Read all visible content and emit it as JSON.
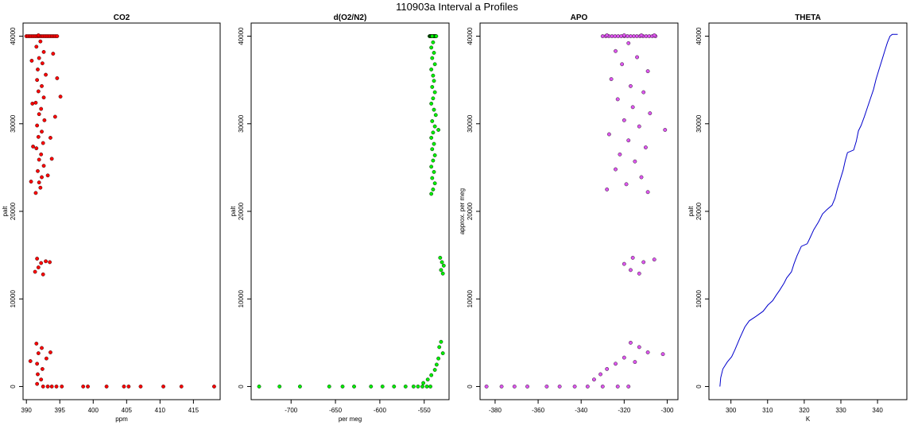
{
  "figure": {
    "title": "110903a   Interval a Profiles"
  },
  "chart_data": [
    {
      "type": "scatter",
      "title": "CO2",
      "xlabel": "ppm",
      "ylabel": "palt",
      "xlim": [
        389.5,
        419
      ],
      "ylim": [
        -1500,
        41500
      ],
      "xticks": [
        390,
        395,
        400,
        405,
        410,
        415
      ],
      "yticks": [
        0,
        10000,
        20000,
        30000,
        40000
      ],
      "grid": false,
      "marker_color": "#ff0000",
      "series": [
        {
          "points": [
            [
              391.8,
              40100
            ],
            [
              392.1,
              39400
            ],
            [
              391.5,
              38800
            ],
            [
              392.6,
              38200
            ],
            [
              391.9,
              37500
            ],
            [
              392.4,
              36900
            ],
            [
              391.7,
              36200
            ],
            [
              392.9,
              35600
            ],
            [
              391.6,
              35000
            ],
            [
              392.3,
              34300
            ],
            [
              391.8,
              33700
            ],
            [
              392.6,
              33000
            ],
            [
              391.4,
              32400
            ],
            [
              392.2,
              31700
            ],
            [
              391.9,
              31100
            ],
            [
              392.7,
              30400
            ],
            [
              391.6,
              29800
            ],
            [
              392.3,
              29100
            ],
            [
              391.8,
              28500
            ],
            [
              392.5,
              27800
            ],
            [
              391.5,
              27200
            ],
            [
              392.2,
              26500
            ],
            [
              391.9,
              25900
            ],
            [
              392.6,
              25200
            ],
            [
              391.7,
              24600
            ],
            [
              392.3,
              23900
            ],
            [
              391.9,
              23300
            ],
            [
              392.1,
              22700
            ],
            [
              391.4,
              22100
            ],
            [
              394.0,
              38000
            ],
            [
              394.6,
              35200
            ],
            [
              395.1,
              33100
            ],
            [
              394.3,
              30800
            ],
            [
              393.6,
              28400
            ],
            [
              393.8,
              26000
            ],
            [
              393.2,
              24100
            ],
            [
              390.8,
              37200
            ],
            [
              390.9,
              32300
            ],
            [
              391.0,
              27400
            ],
            [
              390.7,
              23400
            ],
            [
              391.6,
              14600
            ],
            [
              392.2,
              14100
            ],
            [
              391.8,
              13600
            ],
            [
              392.9,
              14300
            ],
            [
              391.3,
              13100
            ],
            [
              392.5,
              12800
            ],
            [
              393.5,
              14200
            ],
            [
              391.5,
              4900
            ],
            [
              392.3,
              4400
            ],
            [
              391.8,
              3800
            ],
            [
              393.0,
              3200
            ],
            [
              391.6,
              2600
            ],
            [
              392.4,
              2000
            ],
            [
              391.7,
              1400
            ],
            [
              392.2,
              800
            ],
            [
              391.6,
              300
            ],
            [
              393.6,
              3900
            ],
            [
              390.6,
              2900
            ],
            [
              392.5,
              0
            ],
            [
              393.2,
              0
            ],
            [
              393.8,
              0
            ],
            [
              394.5,
              0
            ],
            [
              395.3,
              0
            ],
            [
              398.5,
              0
            ],
            [
              399.2,
              0
            ],
            [
              402.0,
              0
            ],
            [
              404.6,
              0
            ],
            [
              405.3,
              0
            ],
            [
              407.1,
              0
            ],
            [
              410.5,
              0
            ],
            [
              413.2,
              0
            ],
            [
              418.1,
              0
            ]
          ]
        }
      ]
    },
    {
      "type": "scatter",
      "title": "d(O2/N2)",
      "xlabel": "per meg",
      "ylabel": "palt",
      "xlim": [
        -745,
        -522
      ],
      "ylim": [
        -1500,
        41500
      ],
      "xticks": [
        -700,
        -650,
        -600,
        -550
      ],
      "yticks": [
        0,
        10000,
        20000,
        30000,
        40000
      ],
      "grid": false,
      "marker_color": "#00ee00",
      "series": [
        {
          "points": [
            [
              -541,
              40000
            ],
            [
              -540,
              39300
            ],
            [
              -542,
              38700
            ],
            [
              -539,
              38100
            ],
            [
              -541,
              37500
            ],
            [
              -538,
              36800
            ],
            [
              -542,
              36200
            ],
            [
              -540,
              35500
            ],
            [
              -539,
              34900
            ],
            [
              -541,
              34200
            ],
            [
              -538,
              33600
            ],
            [
              -540,
              32900
            ],
            [
              -542,
              32300
            ],
            [
              -539,
              31600
            ],
            [
              -537,
              31000
            ],
            [
              -541,
              30300
            ],
            [
              -538,
              29700
            ],
            [
              -534,
              29300
            ],
            [
              -540,
              29000
            ],
            [
              -542,
              28400
            ],
            [
              -539,
              27700
            ],
            [
              -541,
              27100
            ],
            [
              -538,
              26400
            ],
            [
              -540,
              25800
            ],
            [
              -542,
              25100
            ],
            [
              -539,
              24500
            ],
            [
              -541,
              23800
            ],
            [
              -538,
              23200
            ],
            [
              -540,
              22500
            ],
            [
              -542,
              22000
            ],
            [
              -532,
              14700
            ],
            [
              -530,
              14200
            ],
            [
              -528,
              13800
            ],
            [
              -531,
              13300
            ],
            [
              -529,
              12900
            ],
            [
              -531,
              5100
            ],
            [
              -533,
              4500
            ],
            [
              -529,
              3800
            ],
            [
              -534,
              3200
            ],
            [
              -536,
              2500
            ],
            [
              -538,
              1900
            ],
            [
              -542,
              1300
            ],
            [
              -546,
              800
            ],
            [
              -551,
              400
            ],
            [
              -543,
              0
            ],
            [
              -547,
              0
            ],
            [
              -552,
              0
            ],
            [
              -557,
              0
            ],
            [
              -562,
              0
            ],
            [
              -571,
              0
            ],
            [
              -584,
              0
            ],
            [
              -597,
              0
            ],
            [
              -610,
              0
            ],
            [
              -629,
              0
            ],
            [
              -642,
              0
            ],
            [
              -657,
              0
            ],
            [
              -690,
              0
            ],
            [
              -713,
              0
            ],
            [
              -736,
              0
            ]
          ]
        }
      ]
    },
    {
      "type": "scatter",
      "title": "APO",
      "xlabel": "",
      "ylabel": "approx. per meg",
      "xlim": [
        -387,
        -295
      ],
      "ylim": [
        -1500,
        41500
      ],
      "xticks": [
        -380,
        -360,
        -340,
        -320,
        -300
      ],
      "yticks": [
        0,
        10000,
        20000,
        30000,
        40000
      ],
      "grid": false,
      "marker_color": "#dd55ee",
      "series": [
        {
          "points": [
            [
              -328,
              40100
            ],
            [
              -320,
              40100
            ],
            [
              -312,
              40100
            ],
            [
              -306,
              40100
            ],
            [
              -318,
              39200
            ],
            [
              -324,
              38300
            ],
            [
              -314,
              37600
            ],
            [
              -321,
              36800
            ],
            [
              -309,
              36000
            ],
            [
              -326,
              35100
            ],
            [
              -317,
              34300
            ],
            [
              -311,
              33600
            ],
            [
              -323,
              32800
            ],
            [
              -316,
              31900
            ],
            [
              -308,
              31200
            ],
            [
              -320,
              30400
            ],
            [
              -313,
              29700
            ],
            [
              -301,
              29300
            ],
            [
              -327,
              28800
            ],
            [
              -318,
              28100
            ],
            [
              -310,
              27300
            ],
            [
              -322,
              26500
            ],
            [
              -315,
              25700
            ],
            [
              -324,
              24800
            ],
            [
              -312,
              23900
            ],
            [
              -319,
              23100
            ],
            [
              -328,
              22500
            ],
            [
              -309,
              22200
            ],
            [
              -316,
              14700
            ],
            [
              -311,
              14200
            ],
            [
              -306,
              14500
            ],
            [
              -317,
              13300
            ],
            [
              -313,
              12900
            ],
            [
              -320,
              14000
            ],
            [
              -317,
              5000
            ],
            [
              -313,
              4500
            ],
            [
              -309,
              3900
            ],
            [
              -320,
              3300
            ],
            [
              -324,
              2600
            ],
            [
              -328,
              2000
            ],
            [
              -331,
              1400
            ],
            [
              -334,
              800
            ],
            [
              -315,
              2800
            ],
            [
              -302,
              3700
            ],
            [
              -318,
              0
            ],
            [
              -323,
              0
            ],
            [
              -330,
              0
            ],
            [
              -337,
              0
            ],
            [
              -343,
              0
            ],
            [
              -350,
              0
            ],
            [
              -356,
              0
            ],
            [
              -365,
              0
            ],
            [
              -371,
              0
            ],
            [
              -377,
              0
            ],
            [
              -384,
              0
            ]
          ]
        }
      ]
    },
    {
      "type": "line",
      "title": "THETA",
      "xlabel": "K",
      "ylabel": "palt",
      "xlim": [
        294,
        348
      ],
      "ylim": [
        -1500,
        41500
      ],
      "xticks": [
        300,
        310,
        320,
        330,
        340
      ],
      "yticks": [
        0,
        10000,
        20000,
        30000,
        40000
      ],
      "grid": false,
      "line_color": "#0000cc",
      "series": [
        {
          "points": [
            [
              297.0,
              0
            ],
            [
              297.2,
              1000
            ],
            [
              297.8,
              2000
            ],
            [
              299.0,
              2800
            ],
            [
              300.2,
              3400
            ],
            [
              301.1,
              4200
            ],
            [
              302.5,
              5600
            ],
            [
              303.8,
              6800
            ],
            [
              305.0,
              7500
            ],
            [
              306.8,
              8000
            ],
            [
              308.8,
              8600
            ],
            [
              310.1,
              9300
            ],
            [
              311.4,
              9800
            ],
            [
              312.3,
              10400
            ],
            [
              313.3,
              11000
            ],
            [
              314.5,
              11800
            ],
            [
              315.2,
              12400
            ],
            [
              316.5,
              13100
            ],
            [
              317.2,
              14000
            ],
            [
              318.0,
              14900
            ],
            [
              319.2,
              16000
            ],
            [
              320.8,
              16300
            ],
            [
              321.6,
              17000
            ],
            [
              322.6,
              17900
            ],
            [
              323.9,
              18800
            ],
            [
              325.0,
              19700
            ],
            [
              326.2,
              20200
            ],
            [
              327.6,
              20700
            ],
            [
              328.4,
              21500
            ],
            [
              329.0,
              22500
            ],
            [
              329.8,
              23600
            ],
            [
              330.6,
              24700
            ],
            [
              331.2,
              25800
            ],
            [
              331.8,
              26700
            ],
            [
              333.5,
              27000
            ],
            [
              334.2,
              28000
            ],
            [
              334.8,
              29200
            ],
            [
              335.5,
              29800
            ],
            [
              336.4,
              30800
            ],
            [
              337.2,
              31800
            ],
            [
              338.0,
              32800
            ],
            [
              338.9,
              33900
            ],
            [
              339.6,
              35100
            ],
            [
              340.4,
              36200
            ],
            [
              341.3,
              37400
            ],
            [
              342.1,
              38500
            ],
            [
              342.7,
              39300
            ],
            [
              343.4,
              40000
            ],
            [
              344.0,
              40200
            ],
            [
              345.5,
              40200
            ]
          ]
        }
      ]
    }
  ]
}
